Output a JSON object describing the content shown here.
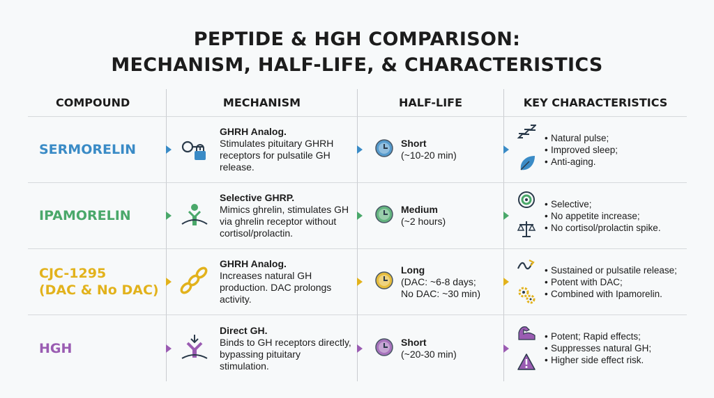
{
  "title": {
    "line1": "PEPTIDE & HGH COMPARISON:",
    "line2": "MECHANISM, HALF-LIFE, & CHARACTERISTICS"
  },
  "table": {
    "headers": [
      "COMPOUND",
      "MECHANISM",
      "HALF-LIFE",
      "KEY CHARACTERISTICS"
    ],
    "rows": [
      {
        "compound": [
          "SERMORELIN"
        ],
        "mechanism": {
          "title": "GHRH Analog.",
          "text": "Stimulates pituitary GHRH receptors for pulsatile GH release."
        },
        "half_life": {
          "title": "Short",
          "detail": "(~10-20 min)"
        },
        "characteristics": [
          "Natural pulse;",
          "Improved sleep;",
          "Anti-aging."
        ]
      },
      {
        "compound": [
          "IPAMORELIN"
        ],
        "mechanism": {
          "title": "Selective GHRP.",
          "text": "Mimics ghrelin, stimulates GH via ghrelin receptor without cortisol/prolactin."
        },
        "half_life": {
          "title": "Medium",
          "detail": "(~2 hours)"
        },
        "characteristics": [
          "Selective;",
          "No appetite increase;",
          "No cortisol/prolactin spike."
        ]
      },
      {
        "compound": [
          "CJC-1295",
          "(DAC & No DAC)"
        ],
        "mechanism": {
          "title": "GHRH Analog.",
          "text": "Increases natural GH production. DAC prolongs activity."
        },
        "half_life": {
          "title": "Long",
          "detail": "(DAC: ~6-8 days; No DAC: ~30 min)"
        },
        "characteristics": [
          "Sustained or pulsatile release;",
          "Potent with DAC;",
          "Combined with Ipamorelin."
        ]
      },
      {
        "compound": [
          "HGH"
        ],
        "mechanism": {
          "title": "Direct GH.",
          "text": "Binds to GH receptors directly, bypassing pituitary stimulation."
        },
        "half_life": {
          "title": "Short",
          "detail": "(~20-30 min)"
        },
        "characteristics": [
          "Potent; Rapid effects;",
          "Suppresses natural GH;",
          "Higher side effect risk."
        ]
      }
    ]
  }
}
